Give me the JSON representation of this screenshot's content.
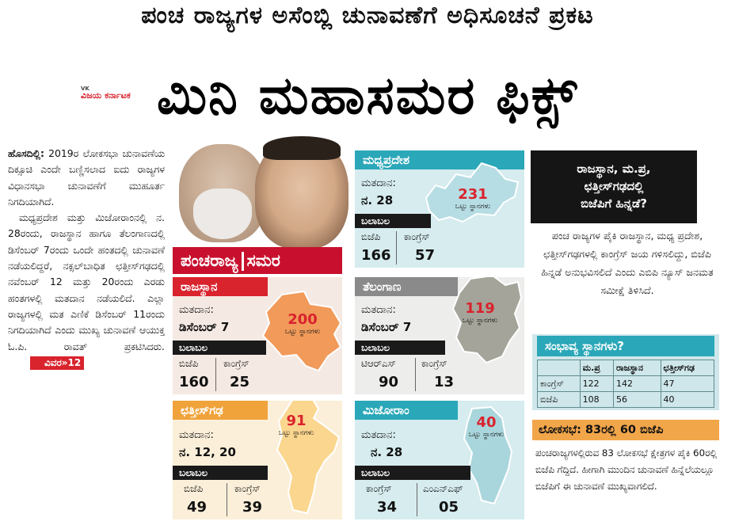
{
  "header": {
    "kicker": "ಪಂಚ ರಾಜ್ಯಗಳ ಅಸೆಂಬ್ಲಿ ಚುನಾವಣೆಗೆ ಅಧಿಸೂಚನೆ ಪ್ರಕಟ",
    "headline": "ಮಿನಿ ಮಹಾಸಮರ ಫಿಕ್ಸ್",
    "logo_top": "VK",
    "logo": "ವಿಜಯ ಕರ್ನಾಟಕ"
  },
  "story": {
    "dateline": "ಹೊಸದಿಲ್ಲಿ:",
    "para1": "2019ರ ಲೋಕಸಭಾ ಚುನಾವಣೆಯ ದಿಕ್ಸೂಚಿ ಎಂದೇ ಬಣ್ಣಿಸಲಾದ ಐದು ರಾಜ್ಯಗಳ ವಿಧಾನಸಭಾ ಚುನಾವಣೆಗೆ ಮುಹೂರ್ತ ನಿಗದಿಯಾಗಿದೆ.",
    "para2": "ಮಧ್ಯಪ್ರದೇಶ ಮತ್ತು ಮಿಜೋರಾಂನಲ್ಲಿ ನ. 28ರಂದು, ರಾಜಸ್ಥಾನ ಹಾಗೂ ತೆಲಂಗಾಣದಲ್ಲಿ ಡಿಸೆಂಬರ್ 7ರಂದು ಒಂದೇ ಹಂತದಲ್ಲಿ ಚುನಾವಣೆ ನಡೆಯಲಿದ್ದರೆ, ನಕ್ಸಲ್‌ಬಾಧಿತ ಛತ್ತೀಸ್‌ಗಢದಲ್ಲಿ ನವೆಂಬರ್ 12 ಮತ್ತು 20ರಂದು ಎರಡು ಹಂತಗಳಲ್ಲಿ ಮತದಾನ ನಡೆಯಲಿದೆ. ಎಲ್ಲಾ ರಾಜ್ಯಗಳಲ್ಲಿ ಮತ ಎಣಿಕೆ ಡಿಸೆಂಬರ್ 11ರಂದು ನಿಗದಿಯಾಗಿದೆ ಎಂದು ಮುಖ್ಯ ಚುನಾವಣೆ ಆಯುಕ್ತ ಓ.ಪಿ. ರಾವತ್ ಪ್ರಕಟಿಸಿದರು.",
    "more": "ವಿವರ»12"
  },
  "section_banner": {
    "left": "ಪಂಚರಾಜ್ಯ",
    "right": "ಸಮರ"
  },
  "common": {
    "poll_label": "ಮತದಾನ:",
    "strength_label": "ಬಲಾಬಲ",
    "seats_label": "ಒಟ್ಟು ಸ್ಥಾನಗಳು"
  },
  "states": {
    "rajasthan": {
      "name": "ರಾಜಸ್ಥಾನ",
      "poll_date": "ಡಿಸೆಂಬರ್ 7",
      "total": "200",
      "party1": "ಬಿಜೆಪಿ",
      "seats1": "160",
      "party2": "ಕಾಂಗ್ರೆಸ್",
      "seats2": "25",
      "title_color": "#d9232d",
      "bg_color": "#f5e9e3"
    },
    "chhattisgarh": {
      "name": "ಛತ್ತೀಸ್‌ಗಢ",
      "poll_date": "ನ. 12, 20",
      "total": "91",
      "party1": "ಬಿಜೆಪಿ",
      "seats1": "49",
      "party2": "ಕಾಂಗ್ರೆಸ್",
      "seats2": "39",
      "title_color": "#f0a33a",
      "bg_color": "#fbefd9"
    },
    "madhyapradesh": {
      "name": "ಮಧ್ಯಪ್ರದೇಶ",
      "poll_date": "ನ. 28",
      "total": "231",
      "party1": "ಬಿಜೆಪಿ",
      "seats1": "166",
      "party2": "ಕಾಂಗ್ರೆಸ್",
      "seats2": "57",
      "title_color": "#2aa7b8",
      "bg_color": "#d6ecef"
    },
    "telangana": {
      "name": "ತೆಲಂಗಾಣ",
      "poll_date": "ಡಿಸೆಂಬರ್ 7",
      "total": "119",
      "party1": "ಟಿಆರ್‌ಎಸ್",
      "seats1": "90",
      "party2": "ಕಾಂಗ್ರೆಸ್",
      "seats2": "13",
      "title_color": "#8a8a8a",
      "bg_color": "#ededeb"
    },
    "mizoram": {
      "name": "ಮಿಜೋರಾಂ",
      "poll_date": "ನ. 28",
      "total": "40",
      "party1": "ಕಾಂಗ್ರೆಸ್",
      "seats1": "34",
      "party2": "ಎಂಎನ್‌ಎಫ್",
      "seats2": "05",
      "title_color": "#2aa7b8",
      "bg_color": "#d6ecef"
    }
  },
  "opinion": {
    "line1": "ರಾಜಸ್ಥಾನ, ಮ.ಪ್ರ,",
    "line2": "ಛತ್ತೀಸ್‌ಗಢದಲ್ಲಿ",
    "line3": "ಬಿಜೆಪಿಗೆ ಹಿನ್ನಡೆ?",
    "body": "ಪಂಚ ರಾಜ್ಯಗಳ ಪೈಕಿ ರಾಜಸ್ಥಾನ, ಮಧ್ಯ ಪ್ರದೇಶ, ಛತ್ತೀಸ್‌ಗಢಗಳಲ್ಲಿ ಕಾಂಗ್ರೆಸ್ ಜಯ ಗಳಿಸಲಿದ್ದು, ಬಿಜೆಪಿ ಹಿನ್ನಡೆ ಅನುಭವಿಸಲಿದೆ ಎಂದು ಎಬಿಪಿ ನ್ಯೂಸ್ ಜನಮತ ಸಮೀಕ್ಷೆ ತಿಳಿಸಿದೆ."
  },
  "probable": {
    "title": "ಸಂಭಾವ್ಯ ಸ್ಥಾನಗಳು?",
    "headers": [
      "",
      "ಮ.ಪ್ರ",
      "ರಾಜಸ್ಥಾನ",
      "ಛತ್ತೀಸ್‌ಗಢ"
    ],
    "rows": [
      [
        "ಕಾಂಗ್ರೆಸ್",
        "122",
        "142",
        "47"
      ],
      [
        "ಬಿಜೆಪಿ",
        "108",
        "56",
        "40"
      ]
    ]
  },
  "loksabha": {
    "title": "ಲೋಕಸಭೆ: 83ರಲ್ಲಿ 60 ಬಿಜೆಪಿ",
    "body": "ಪಂಚರಾಜ್ಯಗಳಲ್ಲಿರುವ 83 ಲೋಕಸಭೆ ಕ್ಷೇತ್ರಗಳ ಪೈಕಿ 60ರಲ್ಲಿ ಬಿಜೆಪಿ ಗೆದ್ದಿದೆ. ಹೀಗಾಗಿ ಮುಂದಿನ ಚುನಾವಣೆ ಹಿನ್ನೆಲೆಯಲ್ಲೂ ಬಿಜೆಪಿಗೆ ಈ ಚುನಾವಣೆ ಮುಖ್ಯವಾಗಲಿದೆ."
  }
}
